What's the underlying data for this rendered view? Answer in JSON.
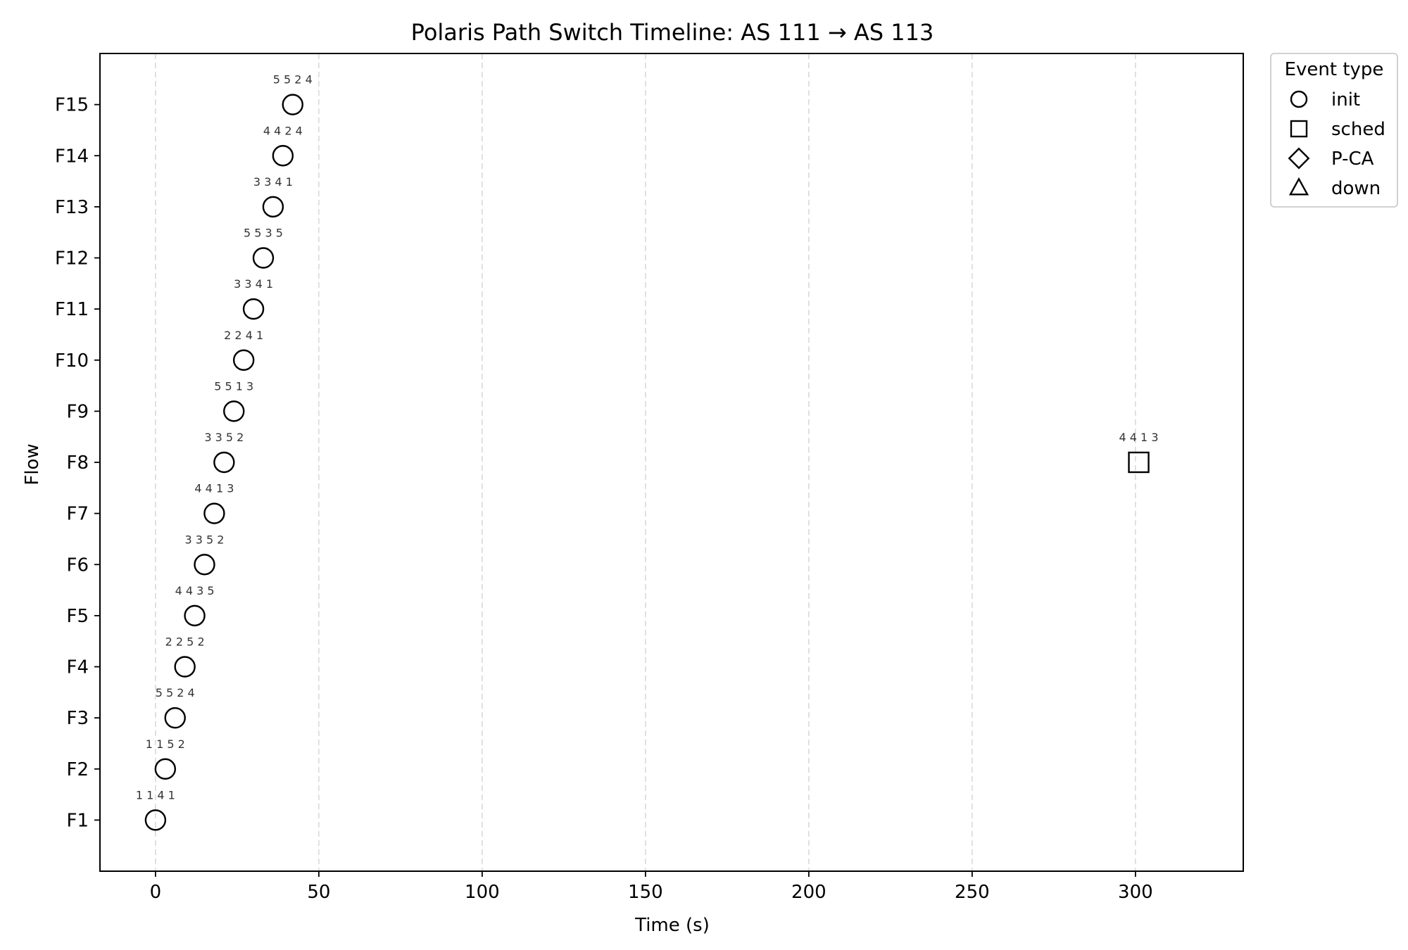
{
  "chart_data": {
    "type": "scatter",
    "title": "Polaris Path Switch Timeline: AS 111 → AS 113",
    "xlabel": "Time (s)",
    "ylabel": "Flow",
    "xlim": [
      -17,
      333
    ],
    "x_ticks": [
      0,
      50,
      100,
      150,
      200,
      250,
      300
    ],
    "x_tick_labels": [
      "0",
      "50",
      "100",
      "150",
      "200",
      "250",
      "300"
    ],
    "grid": "vertical dashed",
    "categories": [
      "F1",
      "F2",
      "F3",
      "F4",
      "F5",
      "F6",
      "F7",
      "F8",
      "F9",
      "F10",
      "F11",
      "F12",
      "F13",
      "F14",
      "F15"
    ],
    "legend": {
      "title": "Event type",
      "placement": "outside top-right",
      "items": [
        {
          "label": "init",
          "marker": "circle"
        },
        {
          "label": "sched",
          "marker": "square"
        },
        {
          "label": "P-CA",
          "marker": "diamond"
        },
        {
          "label": "down",
          "marker": "triangle"
        }
      ]
    },
    "points": [
      {
        "flow": "F1",
        "x": 0,
        "event": "init",
        "label": "1 1 4 1"
      },
      {
        "flow": "F2",
        "x": 3,
        "event": "init",
        "label": "1 1 5 2"
      },
      {
        "flow": "F3",
        "x": 6,
        "event": "init",
        "label": "5 5 2 4"
      },
      {
        "flow": "F4",
        "x": 9,
        "event": "init",
        "label": "2 2 5 2"
      },
      {
        "flow": "F5",
        "x": 12,
        "event": "init",
        "label": "4 4 3 5"
      },
      {
        "flow": "F6",
        "x": 15,
        "event": "init",
        "label": "3 3 5 2"
      },
      {
        "flow": "F7",
        "x": 18,
        "event": "init",
        "label": "4 4 1 3"
      },
      {
        "flow": "F8",
        "x": 21,
        "event": "init",
        "label": "3 3 5 2"
      },
      {
        "flow": "F9",
        "x": 24,
        "event": "init",
        "label": "5 5 1 3"
      },
      {
        "flow": "F10",
        "x": 27,
        "event": "init",
        "label": "2 2 4 1"
      },
      {
        "flow": "F11",
        "x": 30,
        "event": "init",
        "label": "3 3 4 1"
      },
      {
        "flow": "F12",
        "x": 33,
        "event": "init",
        "label": "5 5 3 5"
      },
      {
        "flow": "F13",
        "x": 36,
        "event": "init",
        "label": "3 3 4 1"
      },
      {
        "flow": "F14",
        "x": 39,
        "event": "init",
        "label": "4 4 2 4"
      },
      {
        "flow": "F15",
        "x": 42,
        "event": "init",
        "label": "5 5 2 4"
      },
      {
        "flow": "F8",
        "x": 301,
        "event": "sched",
        "label": "4 4 1 3"
      }
    ]
  }
}
